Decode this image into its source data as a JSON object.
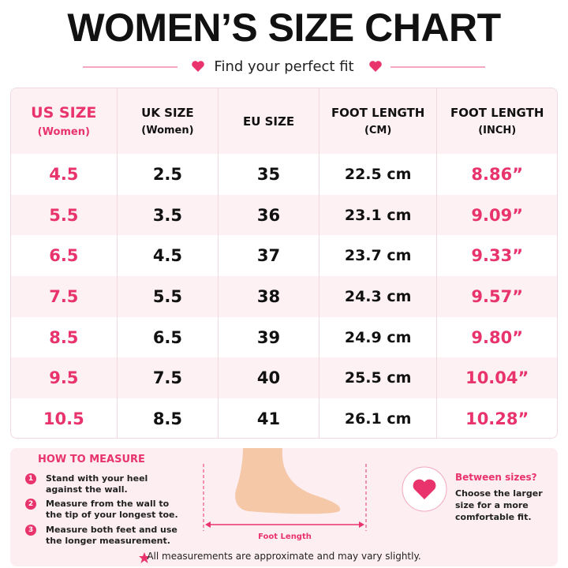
{
  "header": {
    "title": "WOMEN’S SIZE CHART",
    "subtitle": "Find your perfect fit"
  },
  "table": {
    "headers": [
      {
        "title": "US SIZE",
        "sub": "(Women)"
      },
      {
        "title": "UK SIZE",
        "sub": "(Women)"
      },
      {
        "title": "EU SIZE"
      },
      {
        "title": "FOOT LENGTH",
        "sub": "(CM)"
      },
      {
        "title": "FOOT LENGTH",
        "sub": "(INCH)"
      }
    ],
    "rows": [
      [
        "4.5",
        "2.5",
        "35",
        "22.5 cm",
        "8.86”"
      ],
      [
        "5.5",
        "3.5",
        "36",
        "23.1 cm",
        "9.09”"
      ],
      [
        "6.5",
        "4.5",
        "37",
        "23.7 cm",
        "9.33”"
      ],
      [
        "7.5",
        "5.5",
        "38",
        "24.3 cm",
        "9.57”"
      ],
      [
        "8.5",
        "6.5",
        "39",
        "24.9 cm",
        "9.80”"
      ],
      [
        "9.5",
        "7.5",
        "40",
        "25.5 cm",
        "10.04”"
      ],
      [
        "10.5",
        "8.5",
        "41",
        "26.1 cm",
        "10.28”"
      ]
    ]
  },
  "measure": {
    "title": "HOW TO MEASURE",
    "steps": [
      {
        "number": "1",
        "text": "Stand with your heel against the wall."
      },
      {
        "number": "2",
        "text": "Measure from the wall to the tip of your longest toe."
      },
      {
        "number": "3",
        "text": "Measure both feet and use the longer measurement."
      }
    ],
    "diagram_label": "Foot Length"
  },
  "tip": {
    "title": "Between sizes?",
    "text": "Choose the larger size for a more comfortable fit."
  },
  "footer": {
    "note": "All measurements are approximate and may vary slightly."
  }
}
